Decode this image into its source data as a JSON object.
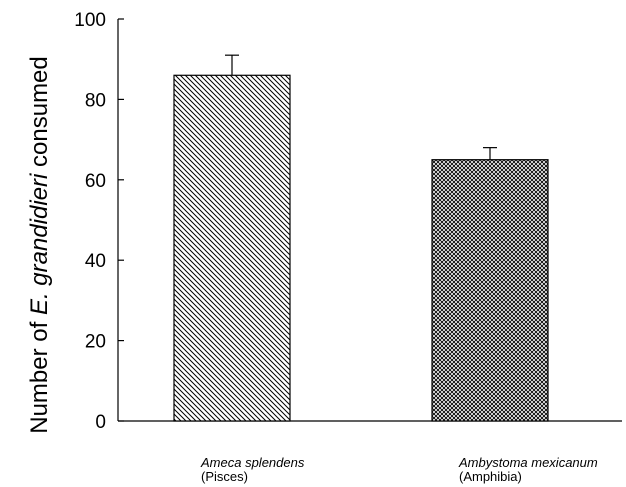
{
  "chart_data": {
    "type": "bar",
    "categories": [
      {
        "species": "Ameca splendens",
        "group": "(Pisces)",
        "pattern": "diagonal-hatch"
      },
      {
        "species": "Ambystoma mexicanum",
        "group": "(Amphibia)",
        "pattern": "crosshatch"
      }
    ],
    "values": [
      86,
      65
    ],
    "errors": [
      5,
      3
    ],
    "ylabel": {
      "prefix": "Number of ",
      "italic": "E. grandidieri",
      "suffix": " consumed"
    },
    "ylim": [
      0,
      100
    ],
    "yticks": [
      0,
      20,
      40,
      60,
      80,
      100
    ],
    "grid": false
  }
}
